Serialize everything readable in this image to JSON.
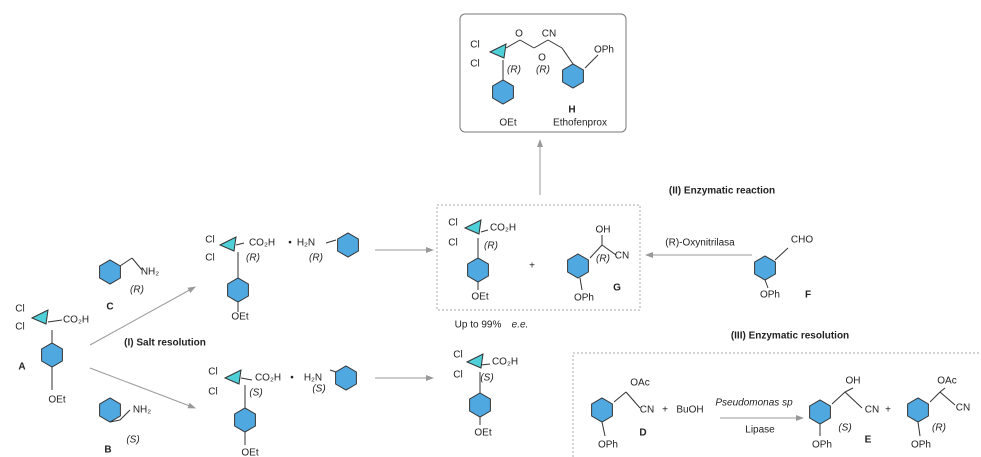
{
  "compound_H": {
    "labels": [
      "Cl",
      "Cl",
      "O",
      "CN",
      "O",
      "OPh",
      "OEt"
    ],
    "stereo": [
      "(R)",
      "(R)"
    ],
    "id": "H",
    "name": "Ethofenprox"
  },
  "compound_A": {
    "labels": [
      "Cl",
      "Cl",
      "CO₂H",
      "OEt"
    ],
    "id": "A"
  },
  "compound_C": {
    "labels": [
      "NH₂"
    ],
    "stereo": [
      "(R)"
    ],
    "id": "C"
  },
  "compound_B": {
    "labels": [
      "NH₂"
    ],
    "stereo": [
      "(S)"
    ],
    "id": "B"
  },
  "salt_R": {
    "labels": [
      "Cl",
      "Cl",
      "CO₂H",
      "•",
      "H₂N",
      "OEt"
    ],
    "stereo": [
      "(R)",
      "(R)"
    ]
  },
  "salt_S": {
    "labels": [
      "Cl",
      "Cl",
      "CO₂H",
      "•",
      "H₂N",
      "OEt"
    ],
    "stereo": [
      "(S)",
      "(S)"
    ]
  },
  "acid_R": {
    "labels": [
      "Cl",
      "Cl",
      "CO₂H",
      "OEt"
    ],
    "stereo": [
      "(R)"
    ]
  },
  "acid_S": {
    "labels": [
      "Cl",
      "Cl",
      "CO₂H",
      "OEt"
    ],
    "stereo": [
      "(S)"
    ]
  },
  "compound_G": {
    "labels": [
      "OH",
      "CN",
      "OPh"
    ],
    "stereo": [
      "(R)"
    ],
    "id": "G"
  },
  "compound_F": {
    "labels": [
      "CHO",
      "OPh"
    ],
    "id": "F"
  },
  "compound_D": {
    "labels": [
      "OAc",
      "CN",
      "OPh"
    ],
    "id": "D"
  },
  "compound_E": {
    "labels": [
      "OH",
      "CN",
      "OPh"
    ],
    "stereo": [
      "(S)"
    ],
    "id": "E"
  },
  "ester_R": {
    "labels": [
      "OAc",
      "CN",
      "OPh"
    ],
    "stereo": [
      "(R)"
    ]
  },
  "steps": {
    "salt_resolution": "(I) Salt resolution",
    "enzymatic_reaction": "(II) Enzymatic reaction",
    "enzymatic_resolution": "(III) Enzymatic resolution",
    "oxynitrilase": "(R)-Oxynitrilasa",
    "bacterium": "Pseudomonas sp",
    "lipase": "Lipase",
    "buoh": "BuOH",
    "yield": "Up to 99%",
    "ee": "e.e."
  },
  "plus_signs": [
    "+",
    "+",
    "+"
  ]
}
